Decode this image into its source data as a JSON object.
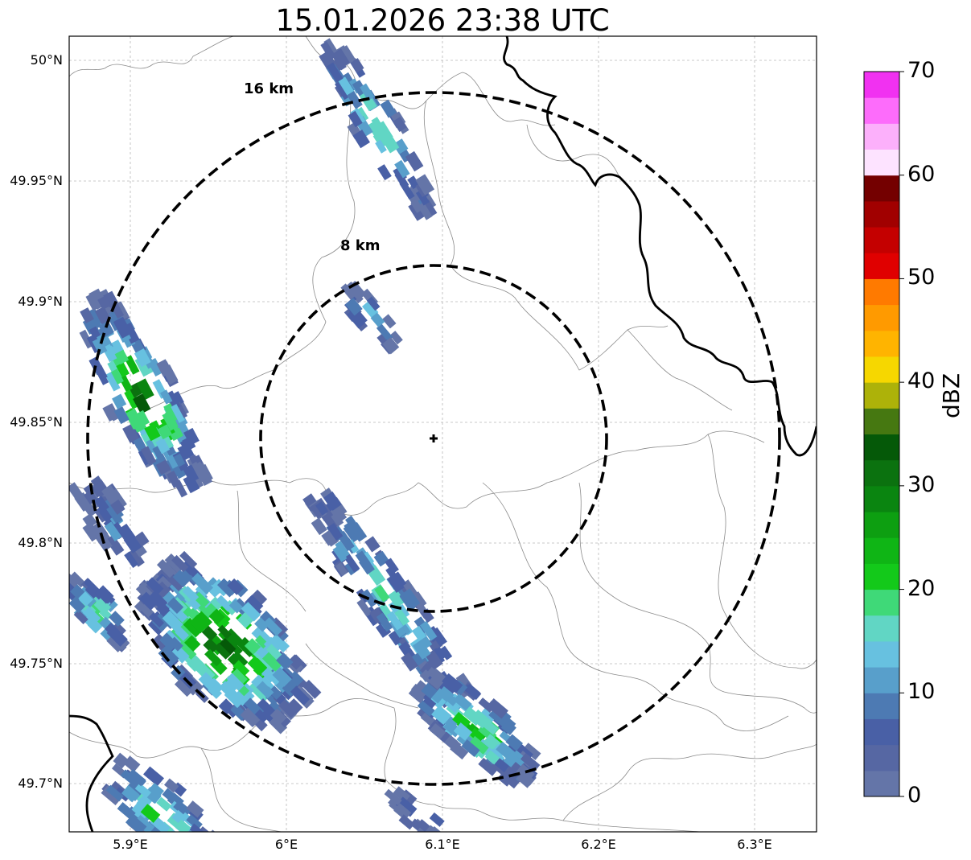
{
  "title": "15.01.2026 23:38 UTC",
  "map": {
    "y_ticks": [
      "50°N",
      "49.95°N",
      "49.9°N",
      "49.85°N",
      "49.8°N",
      "49.75°N",
      "49.7°N"
    ],
    "x_ticks": [
      "5.9°E",
      "6°E",
      "6.1°E",
      "6.2°E",
      "6.3°E"
    ],
    "rings": [
      {
        "label": "8 km",
        "radius_km": 8
      },
      {
        "label": "16 km",
        "radius_km": 16
      }
    ],
    "radar_site_marker": "plus-icon"
  },
  "colorbar": {
    "label": "dBZ",
    "ticks": [
      "0",
      "10",
      "20",
      "30",
      "40",
      "50",
      "60",
      "70"
    ],
    "colors": [
      "#6475a8",
      "#5667a3",
      "#4960a6",
      "#4d7ab3",
      "#589fcb",
      "#67c1e0",
      "#61d6c4",
      "#3fd978",
      "#13c91a",
      "#0fb515",
      "#0d9f11",
      "#0a8510",
      "#0b720f",
      "#055908",
      "#467811",
      "#adb209",
      "#f6d700",
      "#ffb400",
      "#ff9a00",
      "#ff7a00",
      "#e00000",
      "#c40000",
      "#a10000",
      "#740000",
      "#fde3ff",
      "#fcb0fb",
      "#fd6cfb",
      "#f131f1"
    ]
  }
}
